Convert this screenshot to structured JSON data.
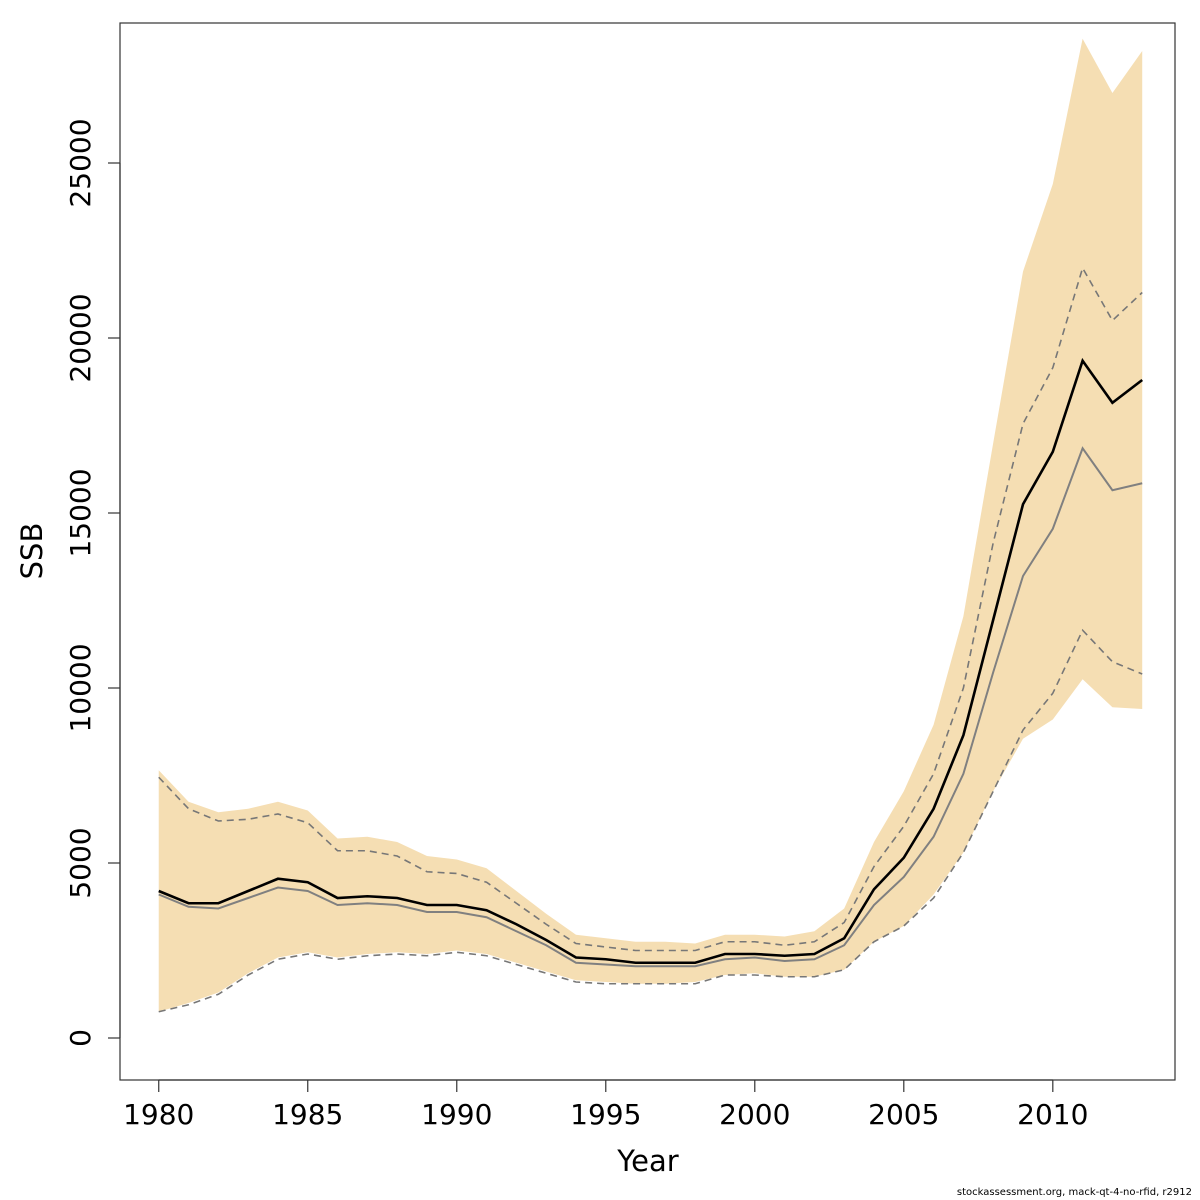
{
  "chart_data": {
    "type": "area",
    "xlabel": "Year",
    "ylabel": "SSB",
    "xlim": [
      1978.7,
      2014.1
    ],
    "ylim": [
      -1200,
      29000
    ],
    "x_ticks": [
      1980,
      1985,
      1990,
      1995,
      2000,
      2005,
      2010
    ],
    "y_ticks": [
      0,
      5000,
      10000,
      15000,
      20000,
      25000
    ],
    "band_color": "#F5DEB3",
    "x": [
      1980,
      1981,
      1982,
      1983,
      1984,
      1985,
      1986,
      1987,
      1988,
      1989,
      1990,
      1991,
      1992,
      1993,
      1994,
      1995,
      1996,
      1997,
      1998,
      1999,
      2000,
      2001,
      2002,
      2003,
      2004,
      2005,
      2006,
      2007,
      2008,
      2009,
      2010,
      2011,
      2012,
      2013
    ],
    "series": [
      {
        "role": "band_upper",
        "values": [
          7650,
          6750,
          6450,
          6550,
          6750,
          6500,
          5700,
          5750,
          5600,
          5200,
          5100,
          4850,
          4200,
          3550,
          2950,
          2850,
          2750,
          2750,
          2700,
          2950,
          2950,
          2900,
          3050,
          3700,
          5600,
          7050,
          8950,
          12050,
          17000,
          21900,
          24400,
          28550,
          27000,
          28200
        ]
      },
      {
        "role": "band_lower",
        "values": [
          750,
          1000,
          1300,
          1850,
          2300,
          2450,
          2300,
          2400,
          2450,
          2400,
          2500,
          2400,
          2150,
          1900,
          1650,
          1600,
          1550,
          1550,
          1600,
          1800,
          1850,
          1750,
          1750,
          1950,
          2750,
          3200,
          4100,
          5300,
          7050,
          8550,
          9100,
          10250,
          9450,
          9400
        ]
      },
      {
        "role": "upper_dashed",
        "values": [
          7450,
          6550,
          6200,
          6250,
          6400,
          6150,
          5350,
          5350,
          5200,
          4750,
          4700,
          4450,
          3850,
          3250,
          2700,
          2600,
          2500,
          2500,
          2500,
          2750,
          2750,
          2650,
          2750,
          3300,
          4900,
          6050,
          7550,
          10000,
          14150,
          17550,
          19150,
          22000,
          20500,
          21300
        ]
      },
      {
        "role": "estimate",
        "values": [
          4200,
          3850,
          3850,
          4200,
          4550,
          4450,
          4000,
          4050,
          4000,
          3800,
          3800,
          3650,
          3250,
          2800,
          2300,
          2250,
          2150,
          2150,
          2150,
          2400,
          2400,
          2350,
          2400,
          2850,
          4250,
          5150,
          6550,
          8650,
          11950,
          15250,
          16750,
          19350,
          18150,
          18800
        ]
      },
      {
        "role": "median",
        "values": [
          4100,
          3750,
          3700,
          4000,
          4300,
          4200,
          3800,
          3850,
          3800,
          3600,
          3600,
          3450,
          3050,
          2650,
          2150,
          2100,
          2050,
          2050,
          2050,
          2250,
          2300,
          2200,
          2250,
          2650,
          3800,
          4600,
          5750,
          7550,
          10450,
          13200,
          14550,
          16850,
          15650,
          15850
        ]
      },
      {
        "role": "lower_dashed",
        "values": [
          750,
          950,
          1250,
          1800,
          2250,
          2400,
          2250,
          2350,
          2400,
          2350,
          2450,
          2350,
          2100,
          1850,
          1600,
          1550,
          1550,
          1550,
          1550,
          1800,
          1800,
          1750,
          1750,
          1950,
          2750,
          3200,
          4000,
          5300,
          7050,
          8800,
          9850,
          11650,
          10750,
          10400
        ]
      }
    ]
  },
  "footer_text": "stockassessment.org, mack-qt-4-no-rfid, r2912"
}
